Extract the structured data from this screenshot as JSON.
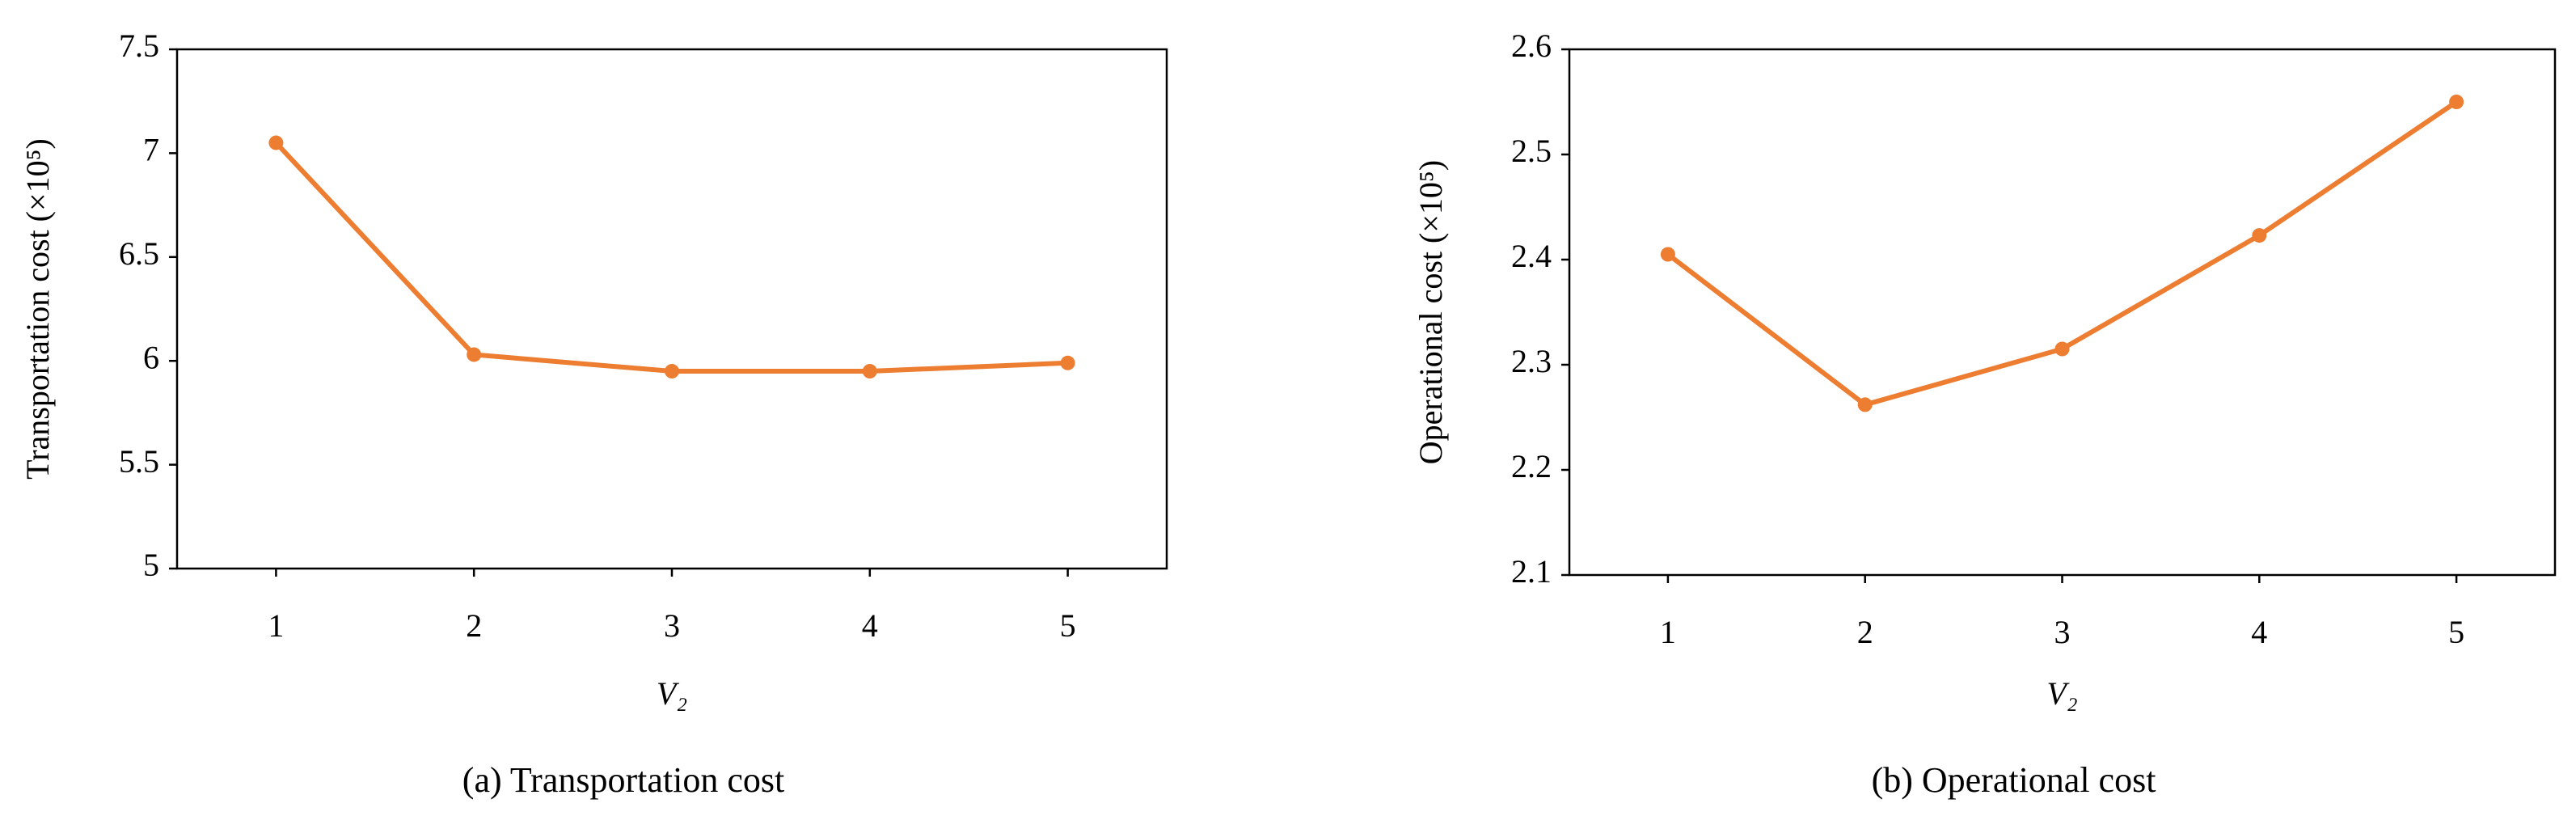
{
  "chart_data": [
    {
      "type": "line",
      "caption": "(a) Transportation cost",
      "ylabel": "Transportation cost (×10⁵)",
      "xlabel": "V₂",
      "categories": [
        "1",
        "2",
        "3",
        "4",
        "5"
      ],
      "series": [
        {
          "name": "Transportation cost",
          "color": "#ED7D31",
          "values": [
            7.05,
            6.03,
            5.95,
            5.95,
            5.99
          ]
        }
      ],
      "ylim": [
        5,
        7.5
      ],
      "yticks": [
        5,
        5.5,
        6,
        6.5,
        7,
        7.5
      ]
    },
    {
      "type": "line",
      "caption": "(b) Operational cost",
      "ylabel": "Operational cost (×10⁵)",
      "xlabel": "V₂",
      "categories": [
        "1",
        "2",
        "3",
        "4",
        "5"
      ],
      "series": [
        {
          "name": "Operational cost",
          "color": "#ED7D31",
          "values": [
            2.405,
            2.262,
            2.315,
            2.423,
            2.55
          ]
        }
      ],
      "ylim": [
        2.1,
        2.6
      ],
      "yticks": [
        2.1,
        2.2,
        2.3,
        2.4,
        2.5,
        2.6
      ]
    }
  ]
}
